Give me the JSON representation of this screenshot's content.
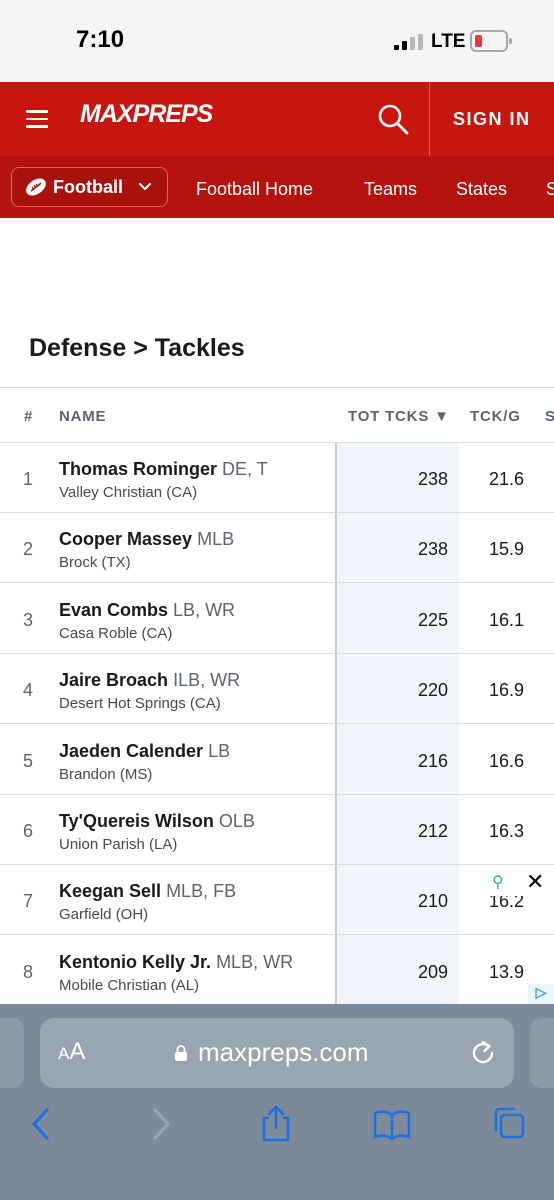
{
  "status": {
    "time": "7:10",
    "carrier": "LTE"
  },
  "header": {
    "logo": "MAXPREPS",
    "sign_in": "SIGN IN"
  },
  "subnav": {
    "sport": "Football",
    "links": [
      "Football Home",
      "Teams",
      "States",
      "S"
    ]
  },
  "page": {
    "title": "Defense > Tackles"
  },
  "table": {
    "columns": [
      "#",
      "NAME",
      "TOT TCKS ▼",
      "TCK/G",
      "S"
    ],
    "rows": [
      {
        "rank": "1",
        "name": "Thomas Rominger",
        "pos": "DE, T",
        "school": "Valley Christian (CA)",
        "tot": "238",
        "tckg": "21.6"
      },
      {
        "rank": "2",
        "name": "Cooper Massey",
        "pos": "MLB",
        "school": "Brock (TX)",
        "tot": "238",
        "tckg": "15.9"
      },
      {
        "rank": "3",
        "name": "Evan Combs",
        "pos": "LB, WR",
        "school": "Casa Roble (CA)",
        "tot": "225",
        "tckg": "16.1"
      },
      {
        "rank": "4",
        "name": "Jaire Broach",
        "pos": "ILB, WR",
        "school": "Desert Hot Springs (CA)",
        "tot": "220",
        "tckg": "16.9"
      },
      {
        "rank": "5",
        "name": "Jaeden Calender",
        "pos": "LB",
        "school": "Brandon (MS)",
        "tot": "216",
        "tckg": "16.6"
      },
      {
        "rank": "6",
        "name": "Ty'Quereis Wilson",
        "pos": "OLB",
        "school": "Union Parish (LA)",
        "tot": "212",
        "tckg": "16.3"
      },
      {
        "rank": "7",
        "name": "Keegan Sell",
        "pos": "MLB, FB",
        "school": "Garfield (OH)",
        "tot": "210",
        "tckg": "16.2"
      },
      {
        "rank": "8",
        "name": "Kentonio Kelly Jr.",
        "pos": "MLB, WR",
        "school": "Mobile Christian (AL)",
        "tot": "209",
        "tckg": "13.9"
      }
    ]
  },
  "ad": {
    "close": "✕",
    "badge": "▷"
  },
  "safari": {
    "aa_small": "A",
    "aa_large": "A",
    "url": "maxpreps.com"
  },
  "icons": [
    "menu-icon",
    "search-icon",
    "football-icon",
    "chevron-down-icon",
    "lock-icon",
    "reload-icon",
    "back-icon",
    "forward-icon",
    "share-icon",
    "bookmarks-icon",
    "tabs-icon"
  ],
  "colors": {
    "brand_red": "#c8150f",
    "subnav_red": "#b3120d",
    "safari_bar": "#7c8a9a",
    "safari_blue": "#1f6fe0"
  }
}
